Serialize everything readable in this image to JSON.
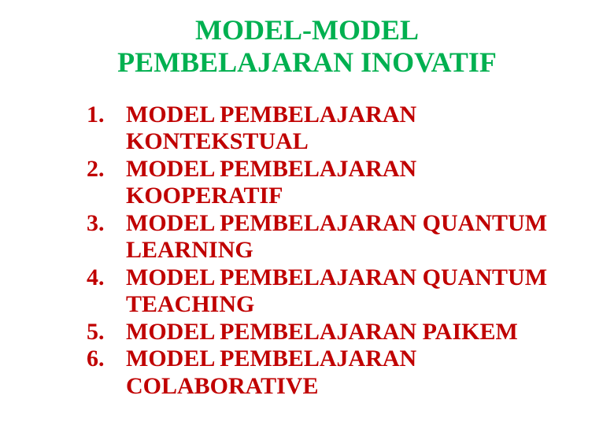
{
  "type": "document-slide",
  "title": "MODEL-MODEL PEMBELAJARAN INOVATIF",
  "title_color": "#00b050",
  "list_color": "#c00000",
  "background_color": "#ffffff",
  "title_fontsize": 36,
  "list_fontsize": 30,
  "font_family": "Georgia, serif",
  "items": [
    {
      "num": "1.",
      "text": "MODEL PEMBELAJARAN KONTEKSTUAL"
    },
    {
      "num": "2.",
      "text": "MODEL PEMBELAJARAN KOOPERATIF"
    },
    {
      "num": "3.",
      "text": "MODEL PEMBELAJARAN QUANTUM LEARNING"
    },
    {
      "num": "4.",
      "text": "MODEL PEMBELAJARAN QUANTUM TEACHING"
    },
    {
      "num": "5.",
      "text": "MODEL PEMBELAJARAN PAIKEM"
    },
    {
      "num": "6.",
      "text": "MODEL PEMBELAJARAN COLABORATIVE"
    }
  ]
}
